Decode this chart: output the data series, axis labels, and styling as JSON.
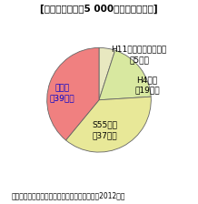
{
  "title_ascii": "[住宅ストック約5 000万戸の断熱性能]",
  "footer": "統計データ、事業者アンケート等により推計（2012年）",
  "slices": [
    {
      "label": "H11基準（現行基準）\n（5％）",
      "value": 5,
      "color": "#e8e8c0",
      "label_color": "#000000"
    },
    {
      "label": "H4基準\n（19％）",
      "value": 19,
      "color": "#d8e8a0",
      "label_color": "#000000"
    },
    {
      "label": "S55基準\n（37％）",
      "value": 37,
      "color": "#e8e898",
      "label_color": "#000000"
    },
    {
      "label": "無断熱\n（39％）",
      "value": 39,
      "color": "#f08080",
      "label_color": "#0000cc"
    }
  ],
  "startangle": 90,
  "title_fontsize": 7.5,
  "footer_fontsize": 5.5,
  "label_fontsize": 6.5,
  "background_color": "#ffffff"
}
